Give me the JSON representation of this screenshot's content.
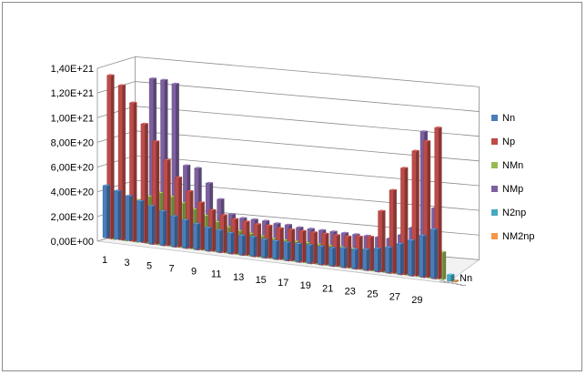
{
  "chart_data": {
    "type": "bar",
    "subtype": "3d-column",
    "title": "",
    "xlabel": "",
    "ylabel": "",
    "depth_axis_label": "Nn",
    "ylim": [
      0,
      1.4e+21
    ],
    "y_ticks": [
      "0,00E+00",
      "2,00E+20",
      "4,00E+20",
      "6,00E+20",
      "8,00E+20",
      "1,00E+21",
      "1,20E+21",
      "1,40E+21"
    ],
    "x_tick_labels": [
      "1",
      "3",
      "5",
      "7",
      "9",
      "11",
      "13",
      "15",
      "17",
      "19",
      "21",
      "23",
      "25",
      "27",
      "29"
    ],
    "categories": [
      "1",
      "2",
      "3",
      "4",
      "5",
      "6",
      "7",
      "8",
      "9",
      "10",
      "11",
      "12",
      "13",
      "14",
      "15",
      "16",
      "17",
      "18",
      "19",
      "20",
      "21",
      "22",
      "23",
      "24",
      "25",
      "26",
      "27",
      "28",
      "29",
      "30"
    ],
    "legend_position": "right",
    "series": [
      {
        "name": "Nn",
        "color": "#4a7ebb",
        "values": [
          4.2e+20,
          3.9e+20,
          3.6e+20,
          3.3e+20,
          3e+20,
          2.7e+20,
          2.4e+20,
          2.2e+20,
          2e+20,
          1.8e+20,
          1.7e+20,
          1.6e+20,
          1.5e+20,
          1.5e+20,
          1.4e+20,
          1.4e+20,
          1.4e+20,
          1.4e+20,
          1.4e+20,
          1.4e+20,
          1.4e+20,
          1.5e+20,
          1.5e+20,
          1.6e+20,
          1.8e+20,
          2e+20,
          2.4e+20,
          2.8e+20,
          3.3e+20,
          3.9e+20
        ]
      },
      {
        "name": "Np",
        "color": "#be4b48",
        "values": [
          1.32e+21,
          1.25e+21,
          1.12e+21,
          9.6e+20,
          8.3e+20,
          6.9e+20,
          5.6e+20,
          4.6e+20,
          3.8e+20,
          3.3e+20,
          3e+20,
          2.8e+20,
          2.7e+20,
          2.6e+20,
          2.6e+20,
          2.5e+20,
          2.5e+20,
          2.5e+20,
          2.5e+20,
          2.5e+20,
          2.5e+20,
          2.5e+20,
          2.6e+20,
          2.7e+20,
          4.9e+20,
          6.7e+20,
          8.6e+20,
          1.01e+21,
          1.1e+21,
          1.22e+21
        ]
      },
      {
        "name": "NMn",
        "color": "#98b954",
        "values": [
          2.6e+20,
          3e+20,
          3.4e+20,
          3.8e+20,
          4.2e+20,
          4e+20,
          3.6e+20,
          3.2e+20,
          2.8e+20,
          2.4e+20,
          2.1e+20,
          1.9e+20,
          1.8e+20,
          1.7e+20,
          1.6e+20,
          1.6e+20,
          1.6e+20,
          1.6e+20,
          1.6e+20,
          1.6e+20,
          1.6e+20,
          1.6e+20,
          1.6e+20,
          1.7e+20,
          1.8e+20,
          2e+20,
          2.2e+20,
          2.5e+20,
          2.4e+20,
          2.2e+20
        ]
      },
      {
        "name": "NMp",
        "color": "#7d60a0",
        "values": [
          0,
          0,
          0,
          1.34e+21,
          1.34e+21,
          1.32e+21,
          6.7e+20,
          6.6e+20,
          5.5e+20,
          4.3e+20,
          3.2e+20,
          3e+20,
          3e+20,
          3e+20,
          2.9e+20,
          2.9e+20,
          2.8e+20,
          2.8e+20,
          2.8e+20,
          2.8e+20,
          2.8e+20,
          2.8e+20,
          2.8e+20,
          2.8e+20,
          2.8e+20,
          3.2e+20,
          3.9e+20,
          1.18e+21,
          5.7e+20,
          0
        ]
      },
      {
        "name": "N2np",
        "color": "#46aac5",
        "values": [
          0,
          0,
          0,
          0,
          0,
          0,
          0,
          0,
          0,
          0,
          0,
          0,
          0,
          0,
          0,
          0,
          0,
          0,
          0,
          0,
          0,
          0,
          0,
          0,
          0,
          0,
          0,
          0,
          0,
          5e+19
        ]
      },
      {
        "name": "NM2np",
        "color": "#f79646",
        "values": [
          0,
          0,
          0,
          0,
          0,
          0,
          0,
          0,
          0,
          0,
          0,
          0,
          0,
          0,
          0,
          0,
          0,
          0,
          0,
          0,
          0,
          0,
          0,
          0,
          0,
          0,
          0,
          0,
          0,
          1e+19
        ]
      }
    ]
  }
}
